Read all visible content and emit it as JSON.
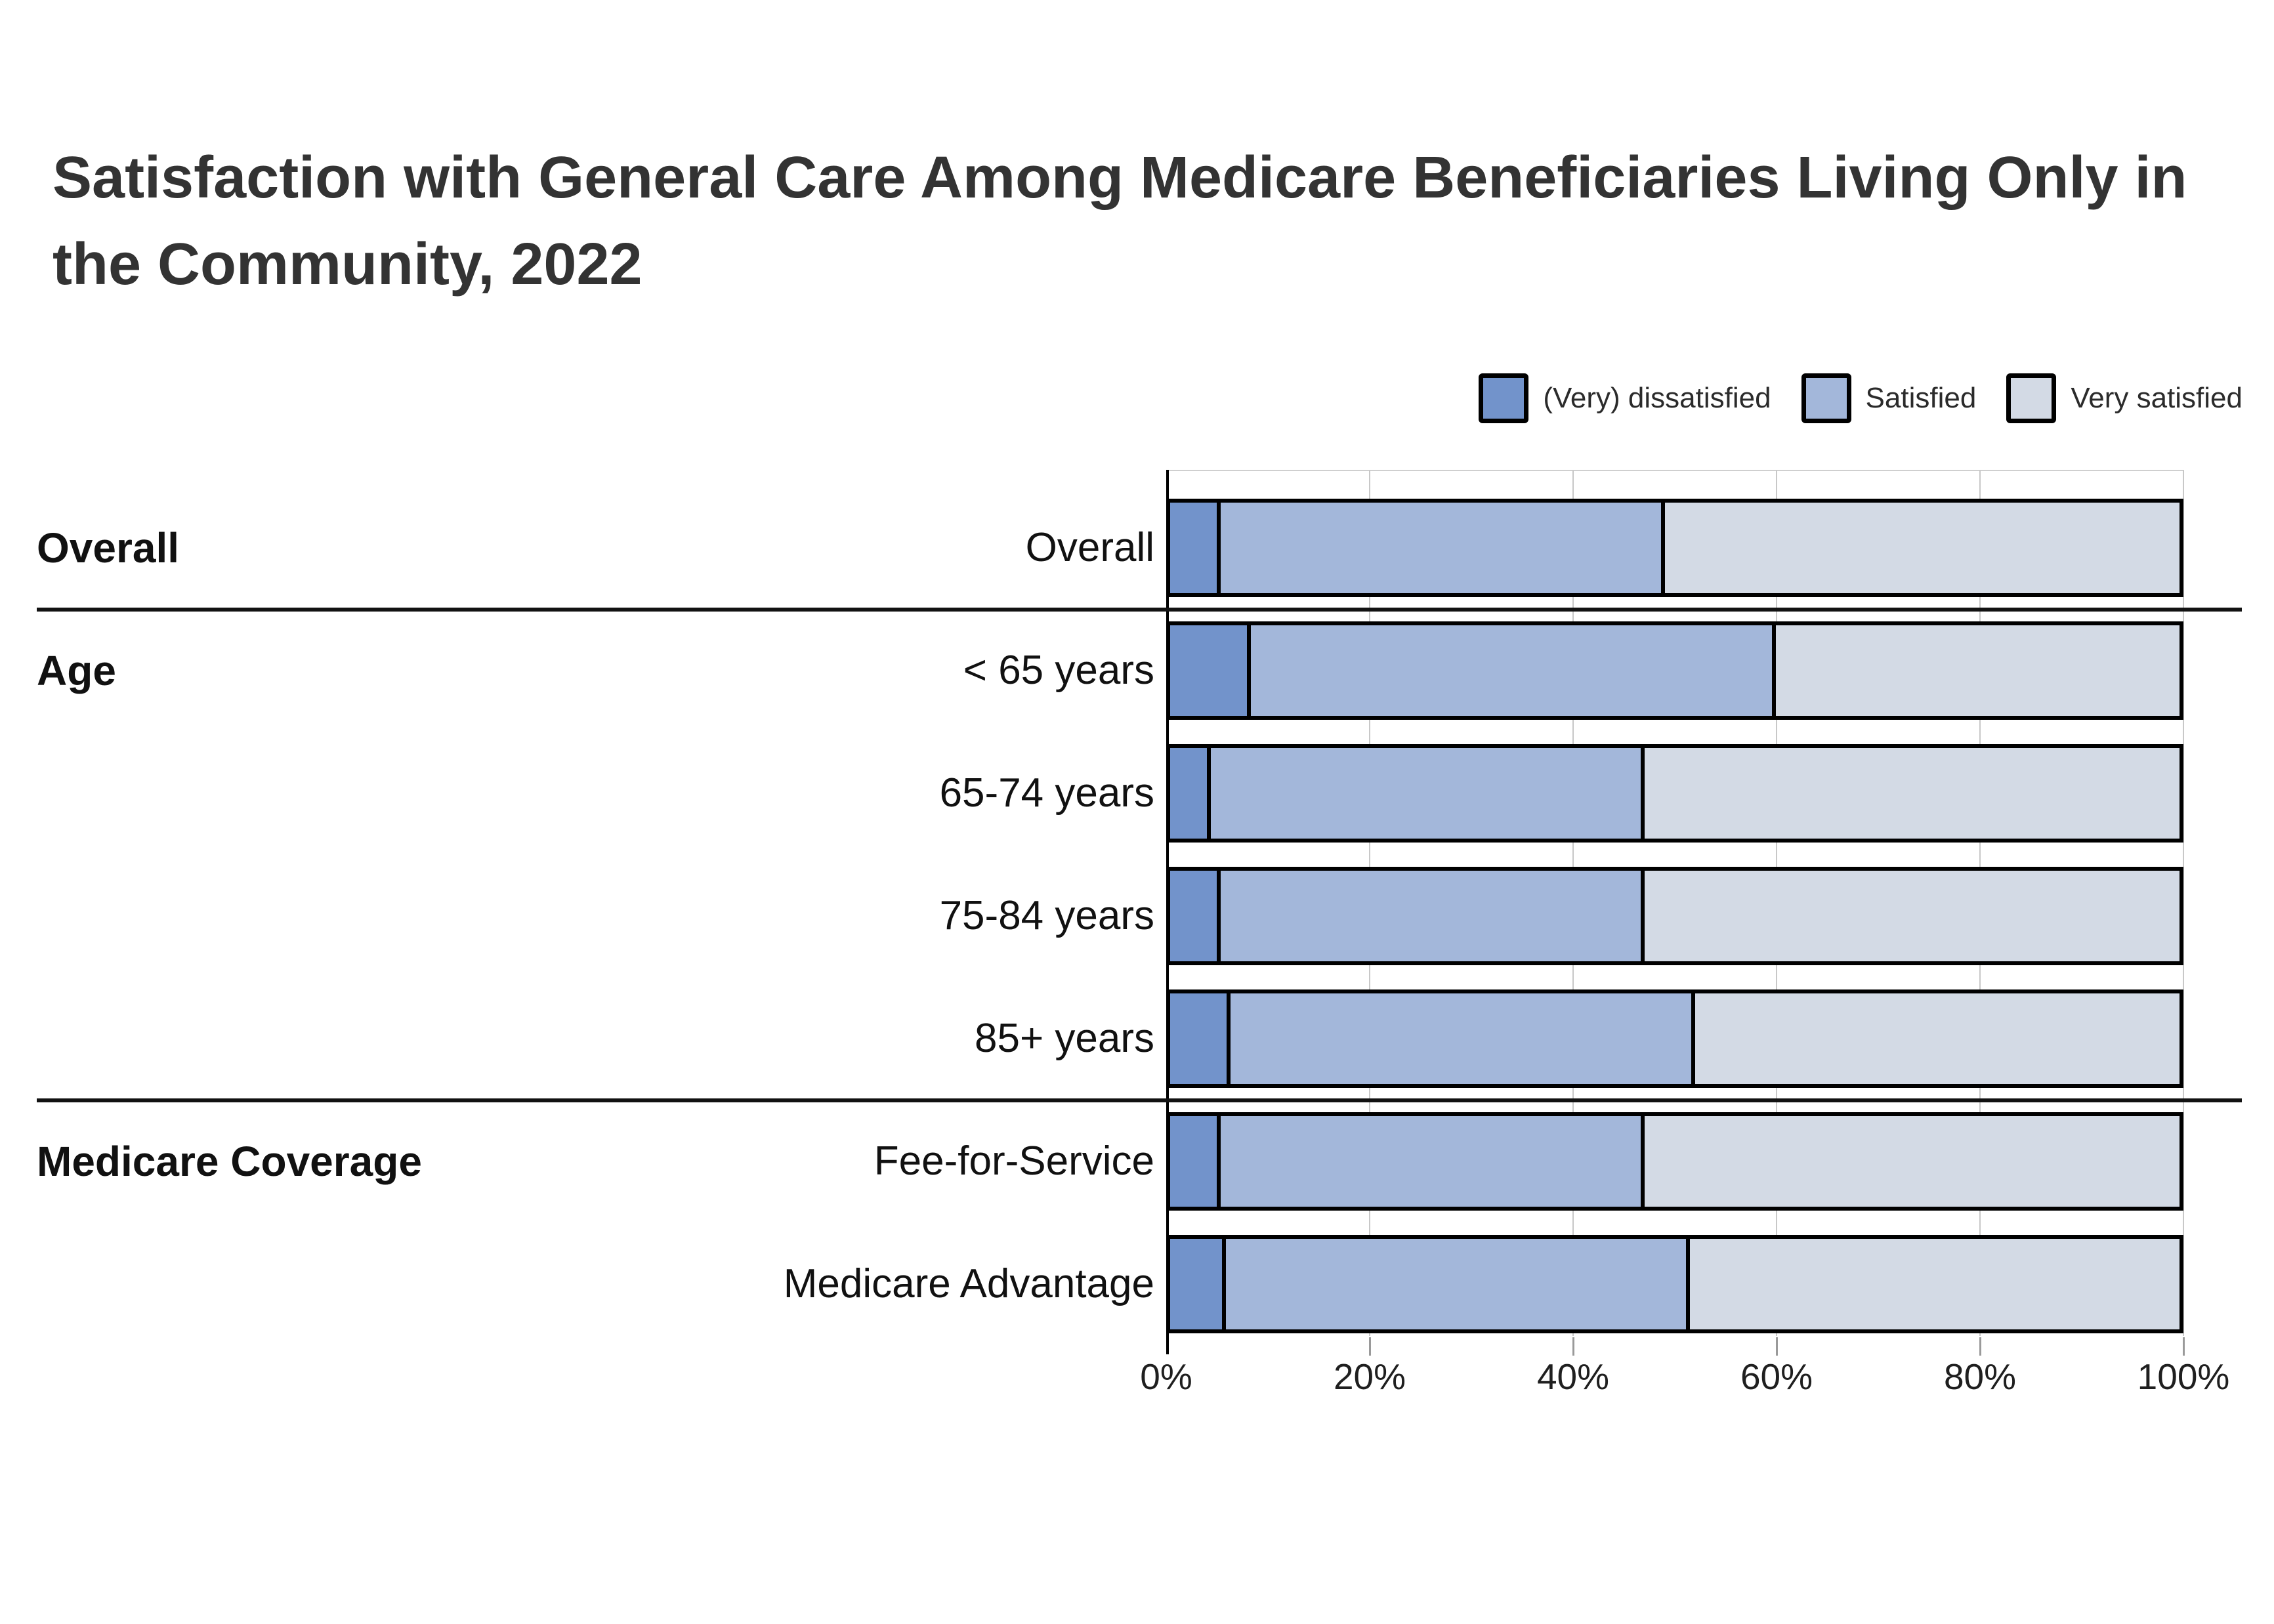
{
  "title": "Satisfaction with General Care Among Medicare Beneficiaries Living Only in the Community, 2022",
  "legend": [
    {
      "label": "(Very) dissatisfied",
      "color": "#7293cb"
    },
    {
      "label": "Satisfied",
      "color": "#a3b7da"
    },
    {
      "label": "Very satisfied",
      "color": "#d3dae5"
    }
  ],
  "chart_data": {
    "type": "bar",
    "stacked": true,
    "orientation": "horizontal",
    "title": "Satisfaction with General Care Among Medicare Beneficiaries Living Only in the Community, 2022",
    "categories": [
      "Overall",
      "< 65 years",
      "65-74 years",
      "75-84 years",
      "85+ years",
      "Fee-for-Service",
      "Medicare Advantage"
    ],
    "groups": [
      {
        "label": "Overall",
        "first_row": 0,
        "last_row": 0
      },
      {
        "label": "Age",
        "first_row": 1,
        "last_row": 4
      },
      {
        "label": "Medicare Coverage",
        "first_row": 5,
        "last_row": 6
      }
    ],
    "series": [
      {
        "name": "(Very) dissatisfied",
        "color": "#7293cb",
        "values": [
          5,
          8,
          4,
          5,
          6,
          5,
          5.5
        ]
      },
      {
        "name": "Satisfied",
        "color": "#a3b7da",
        "values": [
          44,
          52,
          43,
          42,
          46,
          42,
          46
        ]
      },
      {
        "name": "Very satisfied",
        "color": "#d3dae5",
        "values": [
          51,
          40,
          53,
          53,
          48,
          53,
          48.5
        ]
      }
    ],
    "x_axis": {
      "ticks": [
        "0%",
        "20%",
        "40%",
        "60%",
        "80%",
        "100%"
      ],
      "min": 0,
      "max": 100,
      "unit": "%"
    },
    "legend_position": "top-right",
    "grid": true,
    "bar_border_color": "#000000",
    "gridline_color": "#c8c8c8",
    "divider_color": "#121212"
  }
}
